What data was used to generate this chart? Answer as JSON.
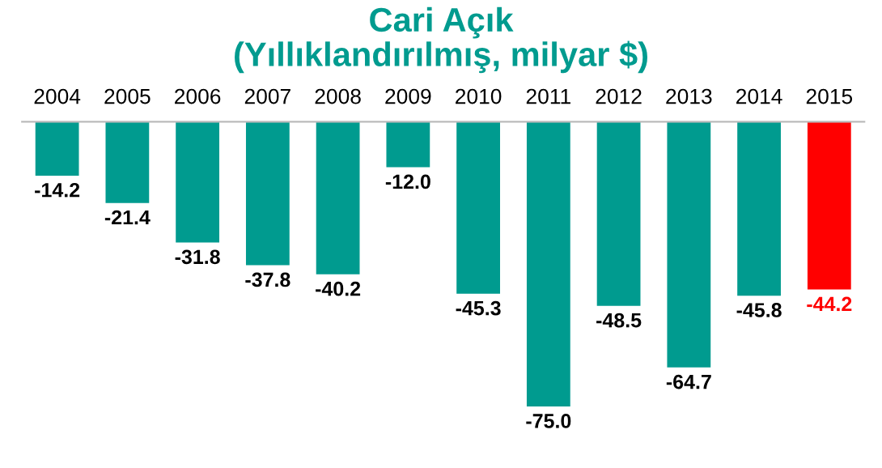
{
  "chart_data": {
    "type": "bar",
    "title": "Cari Açık\n(Yıllıklandırılmış, milyar $)",
    "categories": [
      "2004",
      "2005",
      "2006",
      "2007",
      "2008",
      "2009",
      "2010",
      "2011",
      "2012",
      "2013",
      "2014",
      "2015"
    ],
    "values": [
      -14.2,
      -21.4,
      -31.8,
      -37.8,
      -40.2,
      -12.0,
      -45.3,
      -75.0,
      -48.5,
      -64.7,
      -45.8,
      -44.2
    ],
    "value_labels": [
      "-14.2",
      "-21.4",
      "-31.8",
      "-37.8",
      "-40.2",
      "-12.0",
      "-45.3",
      "-75.0",
      "-48.5",
      "-64.7",
      "-45.8",
      "-44.2"
    ],
    "colors": [
      "#009b8f",
      "#009b8f",
      "#009b8f",
      "#009b8f",
      "#009b8f",
      "#009b8f",
      "#009b8f",
      "#009b8f",
      "#009b8f",
      "#009b8f",
      "#009b8f",
      "#ff0000"
    ],
    "grid": false,
    "legend": false
  }
}
